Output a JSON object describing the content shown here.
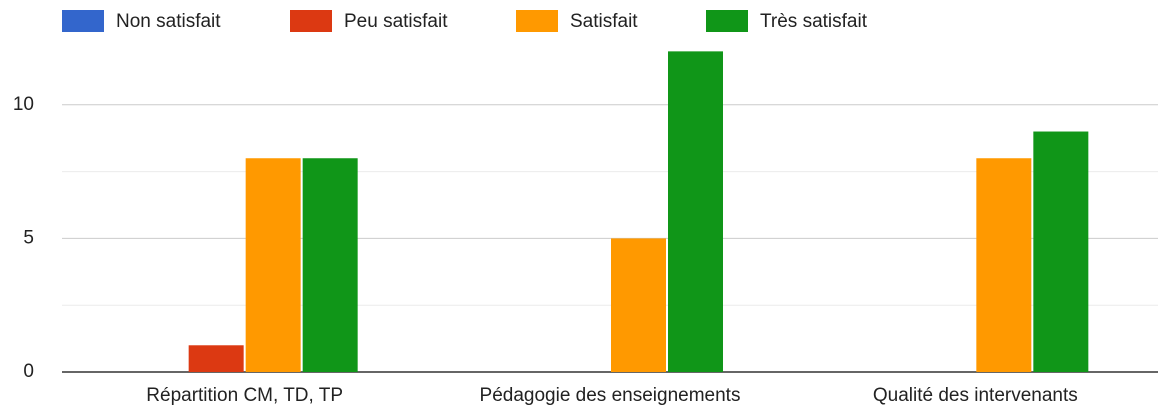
{
  "chart_data": {
    "type": "bar",
    "categories": [
      "Répartition CM, TD, TP",
      "Pédagogie des enseignements",
      "Qualité des intervenants"
    ],
    "series": [
      {
        "name": "Non satisfait",
        "color": "#3366cc",
        "values": [
          0,
          0,
          0
        ]
      },
      {
        "name": "Peu satisfait",
        "color": "#dc3912",
        "values": [
          1,
          0,
          0
        ]
      },
      {
        "name": "Satisfait",
        "color": "#ff9900",
        "values": [
          8,
          5,
          8
        ]
      },
      {
        "name": "Très satisfait",
        "color": "#109618",
        "values": [
          8,
          12,
          9
        ]
      }
    ],
    "ylim": [
      0,
      12.5
    ],
    "yticks": [
      0,
      5,
      10
    ],
    "minor_yticks": [
      2.5,
      7.5
    ],
    "grid": true,
    "legend": "top"
  }
}
